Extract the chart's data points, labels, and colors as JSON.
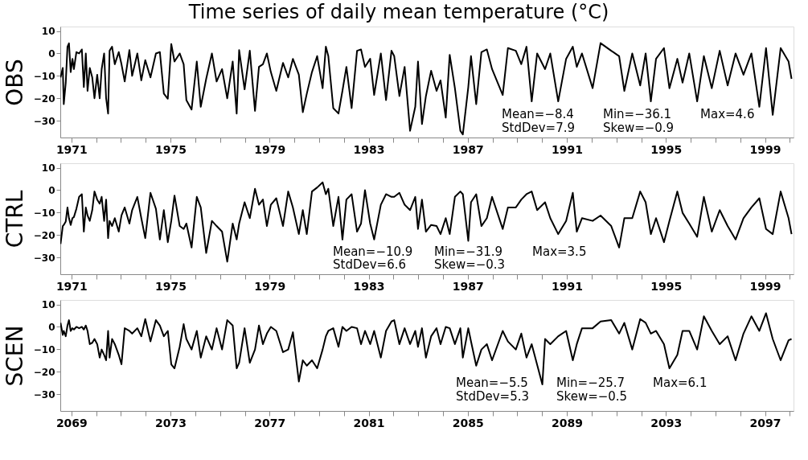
{
  "chart_data": [
    {
      "type": "line",
      "title": "Time series of daily mean temperature (°C)",
      "ylabel": "OBS",
      "color": "#000000",
      "xlim": [
        1970.55,
        2000.15
      ],
      "ylim": [
        -37.5,
        12
      ],
      "yticks": [
        10,
        0,
        -10,
        -20,
        -30
      ],
      "xticks": [
        1971,
        {
          "value": 1972,
          "label": null
        },
        {
          "value": 1973,
          "label": null
        },
        {
          "value": 1974,
          "label": null
        },
        1975,
        {
          "value": 1976,
          "label": null
        },
        {
          "value": 1977,
          "label": null
        },
        {
          "value": 1978,
          "label": null
        },
        1979,
        {
          "value": 1980,
          "label": null
        },
        {
          "value": 1981,
          "label": null
        },
        {
          "value": 1982,
          "label": null
        },
        1983,
        {
          "value": 1984,
          "label": null
        },
        {
          "value": 1985,
          "label": null
        },
        {
          "value": 1986,
          "label": null
        },
        1987,
        {
          "value": 1988,
          "label": null
        },
        {
          "value": 1989,
          "label": null
        },
        {
          "value": 1990,
          "label": null
        },
        1991,
        {
          "value": 1992,
          "label": null
        },
        {
          "value": 1993,
          "label": null
        },
        {
          "value": 1994,
          "label": null
        },
        1995,
        {
          "value": 1996,
          "label": null
        },
        {
          "value": 1997,
          "label": null
        },
        {
          "value": 1998,
          "label": null
        },
        1999,
        {
          "value": 2000,
          "label": null
        }
      ],
      "annotations": [
        "Mean=−8.4",
        "Min=−36.1",
        "Max=4.6",
        "StdDev=7.9",
        "Skew=−0.9"
      ],
      "x": [
        1970.56,
        1970.65,
        1970.69,
        1970.77,
        1970.84,
        1970.9,
        1970.97,
        1971.04,
        1971.1,
        1971.2,
        1971.31,
        1971.42,
        1971.5,
        1971.58,
        1971.65,
        1971.74,
        1971.84,
        1971.93,
        1972.04,
        1972.14,
        1972.22,
        1972.32,
        1972.4,
        1972.48,
        1972.54,
        1972.64,
        1972.75,
        1972.91,
        1973.02,
        1973.15,
        1973.34,
        1973.45,
        1973.66,
        1973.82,
        1973.98,
        1974.19,
        1974.41,
        1974.57,
        1974.73,
        1974.89,
        1975.03,
        1975.16,
        1975.37,
        1975.53,
        1975.64,
        1975.85,
        1976.06,
        1976.22,
        1976.44,
        1976.67,
        1976.86,
        1977.08,
        1977.29,
        1977.51,
        1977.67,
        1977.77,
        1977.99,
        1978.2,
        1978.41,
        1978.57,
        1978.73,
        1978.89,
        1979.05,
        1979.27,
        1979.54,
        1979.75,
        1979.94,
        1980.18,
        1980.34,
        1980.5,
        1980.71,
        1980.92,
        1981.14,
        1981.27,
        1981.37,
        1981.57,
        1981.78,
        1981.94,
        1982.1,
        1982.31,
        1982.53,
        1982.69,
        1982.85,
        1983.06,
        1983.22,
        1983.49,
        1983.7,
        1983.92,
        1984.03,
        1984.24,
        1984.45,
        1984.67,
        1984.88,
        1984.99,
        1985.15,
        1985.31,
        1985.52,
        1985.74,
        1985.9,
        1986.11,
        1986.27,
        1986.48,
        1986.7,
        1986.8,
        1987.02,
        1987.13,
        1987.34,
        1987.55,
        1987.77,
        1987.98,
        1988.41,
        1988.62,
        1988.94,
        1989.16,
        1989.37,
        1989.58,
        1989.8,
        1990.12,
        1990.33,
        1990.65,
        1990.97,
        1991.24,
        1991.4,
        1991.61,
        1992.04,
        1992.36,
        1992.79,
        1993.11,
        1993.32,
        1993.64,
        1993.96,
        1994.18,
        1994.39,
        1994.6,
        1994.92,
        1995.14,
        1995.46,
        1995.67,
        1995.94,
        1996.26,
        1996.53,
        1996.85,
        1997.17,
        1997.49,
        1997.81,
        1998.13,
        1998.45,
        1998.77,
        1999.04,
        1999.31,
        1999.63,
        1999.95,
        2000.07
      ],
      "values": [
        -10.7,
        -6.5,
        -22.6,
        -13,
        3,
        4.5,
        -8.3,
        -2.4,
        -7,
        0.6,
        0,
        1.8,
        -15,
        0,
        -16.7,
        -6.5,
        -10.7,
        -20,
        -9.5,
        -20,
        -7,
        0,
        -20,
        -26.8,
        1.2,
        3,
        -4.8,
        0.6,
        -4.8,
        -12.5,
        1.5,
        -10,
        0,
        -12,
        -3,
        -10.7,
        0,
        0.6,
        -17.9,
        -20.2,
        4.2,
        -3.6,
        0,
        -4.8,
        -20.8,
        -25,
        -3.6,
        -23.8,
        -11.3,
        0,
        -12.5,
        -7,
        -20,
        -3.6,
        -26.8,
        1.5,
        -16,
        1.2,
        -25.6,
        -6,
        -4.8,
        0,
        -8.3,
        -16.7,
        -4.2,
        -10.7,
        -2.4,
        -9.5,
        -26.2,
        -18,
        -8.3,
        -1.2,
        -15.5,
        3,
        -1.2,
        -24.4,
        -26.8,
        -16.7,
        -6,
        -24.4,
        1.2,
        1.8,
        -6,
        -2.4,
        -18.5,
        0,
        -20.8,
        1.2,
        -1.2,
        -19,
        -6,
        -34.5,
        -23.8,
        -3.6,
        -31.5,
        -19,
        -7.7,
        -16.7,
        -12,
        -28.6,
        -0.6,
        -15.5,
        -34.5,
        -36.1,
        -15,
        -1.2,
        -22.6,
        0.6,
        1.8,
        -7,
        -18.5,
        2.4,
        1.2,
        -4.8,
        3,
        -21.4,
        0,
        -7,
        0,
        -21.4,
        -2.4,
        3,
        -6,
        0,
        -15.5,
        4.6,
        1.2,
        -1.2,
        -16.7,
        0,
        -14.3,
        0,
        -21.4,
        -2.4,
        2.4,
        -15.5,
        -2.4,
        -13,
        0,
        -21.4,
        -1.2,
        -15.5,
        1.2,
        -14.3,
        0,
        -9.5,
        0,
        -23.8,
        2.4,
        -27.4,
        2.4,
        -3.6,
        -11.3
      ]
    },
    {
      "type": "line",
      "ylabel": "CTRL",
      "color": "#000000",
      "xlim": [
        1970.55,
        2000.15
      ],
      "ylim": [
        -37.5,
        12
      ],
      "yticks": [
        10,
        0,
        -10,
        -20,
        -30
      ],
      "xticks": [
        1971,
        {
          "value": 1972,
          "label": null
        },
        {
          "value": 1973,
          "label": null
        },
        {
          "value": 1974,
          "label": null
        },
        1975,
        {
          "value": 1976,
          "label": null
        },
        {
          "value": 1977,
          "label": null
        },
        {
          "value": 1978,
          "label": null
        },
        1979,
        {
          "value": 1980,
          "label": null
        },
        {
          "value": 1981,
          "label": null
        },
        {
          "value": 1982,
          "label": null
        },
        1983,
        {
          "value": 1984,
          "label": null
        },
        {
          "value": 1985,
          "label": null
        },
        {
          "value": 1986,
          "label": null
        },
        1987,
        {
          "value": 1988,
          "label": null
        },
        {
          "value": 1989,
          "label": null
        },
        {
          "value": 1990,
          "label": null
        },
        1991,
        {
          "value": 1992,
          "label": null
        },
        {
          "value": 1993,
          "label": null
        },
        {
          "value": 1994,
          "label": null
        },
        1995,
        {
          "value": 1996,
          "label": null
        },
        {
          "value": 1997,
          "label": null
        },
        {
          "value": 1998,
          "label": null
        },
        1999,
        {
          "value": 2000,
          "label": null
        }
      ],
      "annotations": [
        "Mean=−10.9",
        "Min=−31.9",
        "Max=3.5",
        "StdDev=6.6",
        "Skew=−0.3"
      ],
      "x": [
        1970.56,
        1970.65,
        1970.69,
        1970.77,
        1970.84,
        1970.9,
        1970.97,
        1971.04,
        1971.1,
        1971.2,
        1971.31,
        1971.42,
        1971.5,
        1971.58,
        1971.65,
        1971.74,
        1971.84,
        1971.93,
        1972.04,
        1972.14,
        1972.22,
        1972.32,
        1972.4,
        1972.48,
        1972.54,
        1972.64,
        1972.75,
        1972.91,
        1973.02,
        1973.15,
        1973.34,
        1973.45,
        1973.66,
        1973.82,
        1973.98,
        1974.19,
        1974.41,
        1974.57,
        1974.73,
        1974.89,
        1975.03,
        1975.16,
        1975.37,
        1975.53,
        1975.64,
        1975.85,
        1976.06,
        1976.22,
        1976.44,
        1976.67,
        1976.86,
        1977.08,
        1977.29,
        1977.51,
        1977.67,
        1977.77,
        1977.99,
        1978.2,
        1978.41,
        1978.57,
        1978.73,
        1978.89,
        1979.05,
        1979.27,
        1979.54,
        1979.75,
        1979.94,
        1980.18,
        1980.34,
        1980.5,
        1980.71,
        1980.92,
        1981.14,
        1981.27,
        1981.37,
        1981.57,
        1981.78,
        1981.94,
        1982.1,
        1982.31,
        1982.53,
        1982.69,
        1982.85,
        1983.06,
        1983.22,
        1983.49,
        1983.7,
        1983.92,
        1984.03,
        1984.24,
        1984.45,
        1984.67,
        1984.88,
        1984.99,
        1985.15,
        1985.31,
        1985.52,
        1985.74,
        1985.9,
        1986.11,
        1986.27,
        1986.48,
        1986.7,
        1986.8,
        1987.02,
        1987.13,
        1987.34,
        1987.55,
        1987.77,
        1987.98,
        1988.41,
        1988.62,
        1988.94,
        1989.16,
        1989.37,
        1989.58,
        1989.8,
        1990.12,
        1990.33,
        1990.65,
        1990.97,
        1991.24,
        1991.4,
        1991.61,
        1992.04,
        1992.36,
        1992.79,
        1993.11,
        1993.32,
        1993.64,
        1993.96,
        1994.18,
        1994.39,
        1994.6,
        1994.92,
        1995.14,
        1995.46,
        1995.67,
        1995.94,
        1996.26,
        1996.53,
        1996.85,
        1997.17,
        1997.49,
        1997.81,
        1998.13,
        1998.45,
        1998.77,
        1999.04,
        1999.31,
        1999.63,
        1999.95,
        2000.07
      ],
      "values": [
        -24,
        -16,
        -15.5,
        -14,
        -7.7,
        -12.5,
        -15.5,
        -12.5,
        -12,
        -8.3,
        -3,
        -1.8,
        -18.5,
        -7.7,
        -11.3,
        -13.7,
        -8.9,
        -0.6,
        -4.2,
        -6,
        -3,
        -13.7,
        -4.2,
        -21.4,
        -13.7,
        -16,
        -12.5,
        -18.5,
        -11.3,
        -7.7,
        -14.9,
        -8.9,
        -3,
        -12.5,
        -21.4,
        -1.2,
        -8.3,
        -22,
        -8.9,
        -23.2,
        -13.7,
        -2.4,
        -16,
        -17.3,
        -14.9,
        -25.6,
        -3,
        -7.7,
        -28,
        -13.7,
        -16,
        -18.5,
        -31.9,
        -14.9,
        -22,
        -14.9,
        -5.4,
        -12.5,
        0.6,
        -6.5,
        -4.2,
        -16,
        -6.5,
        -3.6,
        -16,
        -0.6,
        -7.7,
        -19.6,
        -8.9,
        -19.6,
        -0.6,
        1.2,
        3.5,
        -1.8,
        0.6,
        -16,
        -3,
        -22,
        -4.2,
        -1.8,
        -18.5,
        -14.9,
        0,
        -14.9,
        -22,
        -6.5,
        -1.8,
        -3,
        -3,
        -1.2,
        -6.5,
        -8.9,
        -3,
        -17.3,
        -4.2,
        -18.5,
        -15.5,
        -16,
        -19.6,
        -12.5,
        -19.6,
        -3,
        -0.6,
        -1.8,
        -22.6,
        -5.4,
        -1.8,
        -16,
        -12.5,
        -3,
        -17.3,
        -7.7,
        -7.7,
        -4.2,
        -1.8,
        -0.6,
        -8.9,
        -5.4,
        -12.5,
        -19.6,
        -13.7,
        -1.2,
        -18.5,
        -12.5,
        -13.7,
        -11.3,
        -16,
        -25.6,
        -12.5,
        -12.5,
        -0.6,
        -5.4,
        -19.6,
        -12.5,
        -23.2,
        -13.7,
        -0.6,
        -10.1,
        -14.9,
        -20.8,
        -3,
        -18.5,
        -8.9,
        -16,
        -22,
        -12.5,
        -7.7,
        -3.6,
        -17.3,
        -19.6,
        -0.6,
        -12.5,
        -19.6
      ]
    },
    {
      "type": "line",
      "ylabel": "SCEN",
      "color": "#000000",
      "xlim": [
        2068.55,
        2098.15
      ],
      "ylim": [
        -37.5,
        12
      ],
      "yticks": [
        10,
        0,
        -10,
        -20,
        -30
      ],
      "xticks": [
        2069,
        {
          "value": 2070,
          "label": null
        },
        {
          "value": 2071,
          "label": null
        },
        {
          "value": 2072,
          "label": null
        },
        2073,
        {
          "value": 2074,
          "label": null
        },
        {
          "value": 2075,
          "label": null
        },
        {
          "value": 2076,
          "label": null
        },
        2077,
        {
          "value": 2078,
          "label": null
        },
        {
          "value": 2079,
          "label": null
        },
        {
          "value": 2080,
          "label": null
        },
        2081,
        {
          "value": 2082,
          "label": null
        },
        {
          "value": 2083,
          "label": null
        },
        {
          "value": 2084,
          "label": null
        },
        2085,
        {
          "value": 2086,
          "label": null
        },
        {
          "value": 2087,
          "label": null
        },
        {
          "value": 2088,
          "label": null
        },
        2089,
        {
          "value": 2090,
          "label": null
        },
        {
          "value": 2091,
          "label": null
        },
        {
          "value": 2092,
          "label": null
        },
        2093,
        {
          "value": 2094,
          "label": null
        },
        {
          "value": 2095,
          "label": null
        },
        {
          "value": 2096,
          "label": null
        },
        2097,
        {
          "value": 2098,
          "label": null
        }
      ],
      "annotations": [
        "Mean=−5.5",
        "Min=−25.7",
        "Max=6.1",
        "StdDev=5.3",
        "Skew=−0.5"
      ],
      "x": [
        2068.56,
        2068.65,
        2068.69,
        2068.77,
        2068.84,
        2068.9,
        2068.97,
        2069.04,
        2069.1,
        2069.2,
        2069.31,
        2069.42,
        2069.5,
        2069.58,
        2069.65,
        2069.74,
        2069.84,
        2069.93,
        2070.04,
        2070.14,
        2070.22,
        2070.32,
        2070.4,
        2070.48,
        2070.54,
        2070.64,
        2070.75,
        2070.91,
        2071.02,
        2071.15,
        2071.34,
        2071.45,
        2071.66,
        2071.82,
        2071.98,
        2072.19,
        2072.41,
        2072.57,
        2072.73,
        2072.89,
        2073.03,
        2073.16,
        2073.37,
        2073.53,
        2073.64,
        2073.85,
        2074.06,
        2074.22,
        2074.44,
        2074.67,
        2074.86,
        2075.08,
        2075.29,
        2075.51,
        2075.67,
        2075.77,
        2075.99,
        2076.2,
        2076.41,
        2076.57,
        2076.73,
        2076.89,
        2077.05,
        2077.27,
        2077.54,
        2077.75,
        2077.94,
        2078.18,
        2078.34,
        2078.5,
        2078.71,
        2078.92,
        2079.14,
        2079.27,
        2079.37,
        2079.57,
        2079.78,
        2079.94,
        2080.1,
        2080.31,
        2080.53,
        2080.69,
        2080.85,
        2081.06,
        2081.22,
        2081.49,
        2081.7,
        2081.92,
        2082.03,
        2082.24,
        2082.45,
        2082.67,
        2082.88,
        2082.99,
        2083.15,
        2083.31,
        2083.52,
        2083.74,
        2083.9,
        2084.11,
        2084.27,
        2084.48,
        2084.7,
        2084.8,
        2085.02,
        2085.13,
        2085.34,
        2085.55,
        2085.77,
        2085.98,
        2086.41,
        2086.62,
        2086.94,
        2087.16,
        2087.37,
        2087.58,
        2088.01,
        2088.12,
        2088.33,
        2088.65,
        2088.97,
        2089.24,
        2089.4,
        2089.61,
        2090.04,
        2090.36,
        2090.79,
        2091.11,
        2091.32,
        2091.64,
        2091.96,
        2092.18,
        2092.39,
        2092.6,
        2092.92,
        2093.14,
        2093.46,
        2093.67,
        2093.94,
        2094.26,
        2094.53,
        2094.85,
        2095.17,
        2095.49,
        2095.81,
        2096.13,
        2096.45,
        2096.77,
        2097.04,
        2097.31,
        2097.63,
        2097.95,
        2098.07
      ],
      "values": [
        1.8,
        -3.6,
        -1.8,
        -4.2,
        0.6,
        3,
        -1.8,
        -0.6,
        -1.2,
        0,
        -0.6,
        0,
        -1.2,
        0.6,
        -1.8,
        -7.7,
        -7.1,
        -5.4,
        -7.7,
        -13.7,
        -10.1,
        -12.5,
        -14.9,
        -1.8,
        -13.7,
        -5.4,
        -7.7,
        -12.5,
        -16.7,
        -0.6,
        -1.8,
        -3,
        -0.6,
        -4.2,
        3.5,
        -6.5,
        3,
        0.6,
        -4.2,
        -1.8,
        -16.7,
        -18.5,
        -8.9,
        1.2,
        -5.4,
        -10.1,
        -1.8,
        -13.7,
        -4.2,
        -10.1,
        -0.6,
        -10.1,
        3,
        0.6,
        -18.5,
        -16,
        -0.6,
        -16,
        -10.1,
        0.6,
        -7.7,
        -3,
        0,
        -1.8,
        -11.3,
        -10.1,
        -2.4,
        -24.4,
        -14.9,
        -17.3,
        -14.9,
        -18.5,
        -10.1,
        -4.2,
        -1.8,
        -0.6,
        -8.9,
        0,
        -1.8,
        0,
        -0.6,
        -7.7,
        -1.8,
        -7.7,
        -1.8,
        -13.7,
        -1.8,
        2.4,
        3,
        -7.7,
        -0.6,
        -7.7,
        -1.8,
        -8.9,
        -0.6,
        -13.7,
        -4.2,
        -0.6,
        -7.7,
        0,
        -0.6,
        -7.7,
        -0.6,
        -13.7,
        -0.6,
        -6.5,
        -17.3,
        -10.1,
        -7.7,
        -14.9,
        -1.8,
        -6.5,
        -10.1,
        -3,
        -13.7,
        -7.7,
        -25.7,
        -5.4,
        -7.7,
        -4.2,
        -1.8,
        -14.9,
        -7.7,
        -0.6,
        -0.6,
        2.4,
        3,
        -3,
        1.8,
        -10.1,
        3.5,
        1.8,
        -3,
        -1.8,
        -7.7,
        -18.5,
        -12.5,
        -1.8,
        -1.8,
        -10.1,
        4.7,
        -1.8,
        -7.7,
        -4.2,
        -14.9,
        -3,
        4.7,
        -1.8,
        6.1,
        -5.4,
        -14.9,
        -6,
        -5.4
      ]
    }
  ]
}
